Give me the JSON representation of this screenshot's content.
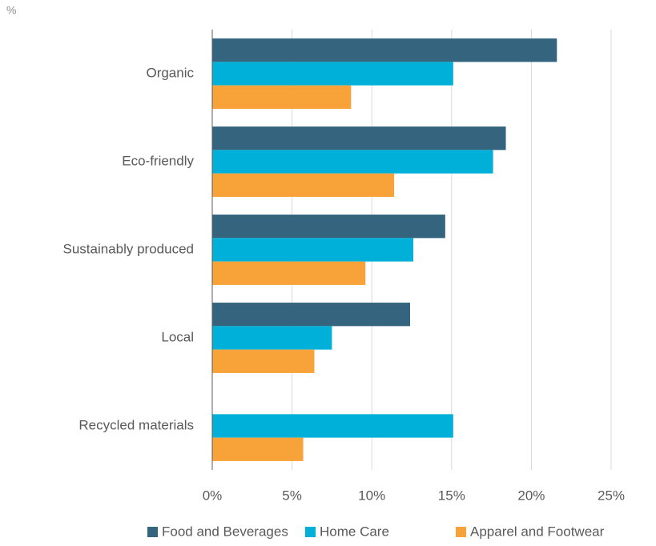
{
  "chart_data": {
    "type": "hbar",
    "unit_label": "%",
    "categories": [
      "Organic",
      "Eco-friendly",
      "Sustainably produced",
      "Local",
      "Recycled materials"
    ],
    "series": [
      {
        "name": "Food and Beverages",
        "color": "#35647e",
        "values": [
          21.6,
          18.4,
          14.6,
          12.4,
          null
        ]
      },
      {
        "name": "Home Care",
        "color": "#00b0d8",
        "values": [
          15.1,
          17.6,
          12.6,
          7.5,
          15.1
        ]
      },
      {
        "name": "Apparel and Footwear",
        "color": "#f8a33a",
        "values": [
          8.7,
          11.4,
          9.6,
          6.4,
          5.7
        ]
      }
    ],
    "xlim": [
      0,
      25
    ],
    "xticks": [
      {
        "value": 0,
        "label": "0%"
      },
      {
        "value": 5,
        "label": "5%"
      },
      {
        "value": 10,
        "label": "10%"
      },
      {
        "value": 15,
        "label": "15%"
      },
      {
        "value": 20,
        "label": "20%"
      },
      {
        "value": 25,
        "label": "25%"
      }
    ],
    "grid": true,
    "legend": "bottom"
  }
}
